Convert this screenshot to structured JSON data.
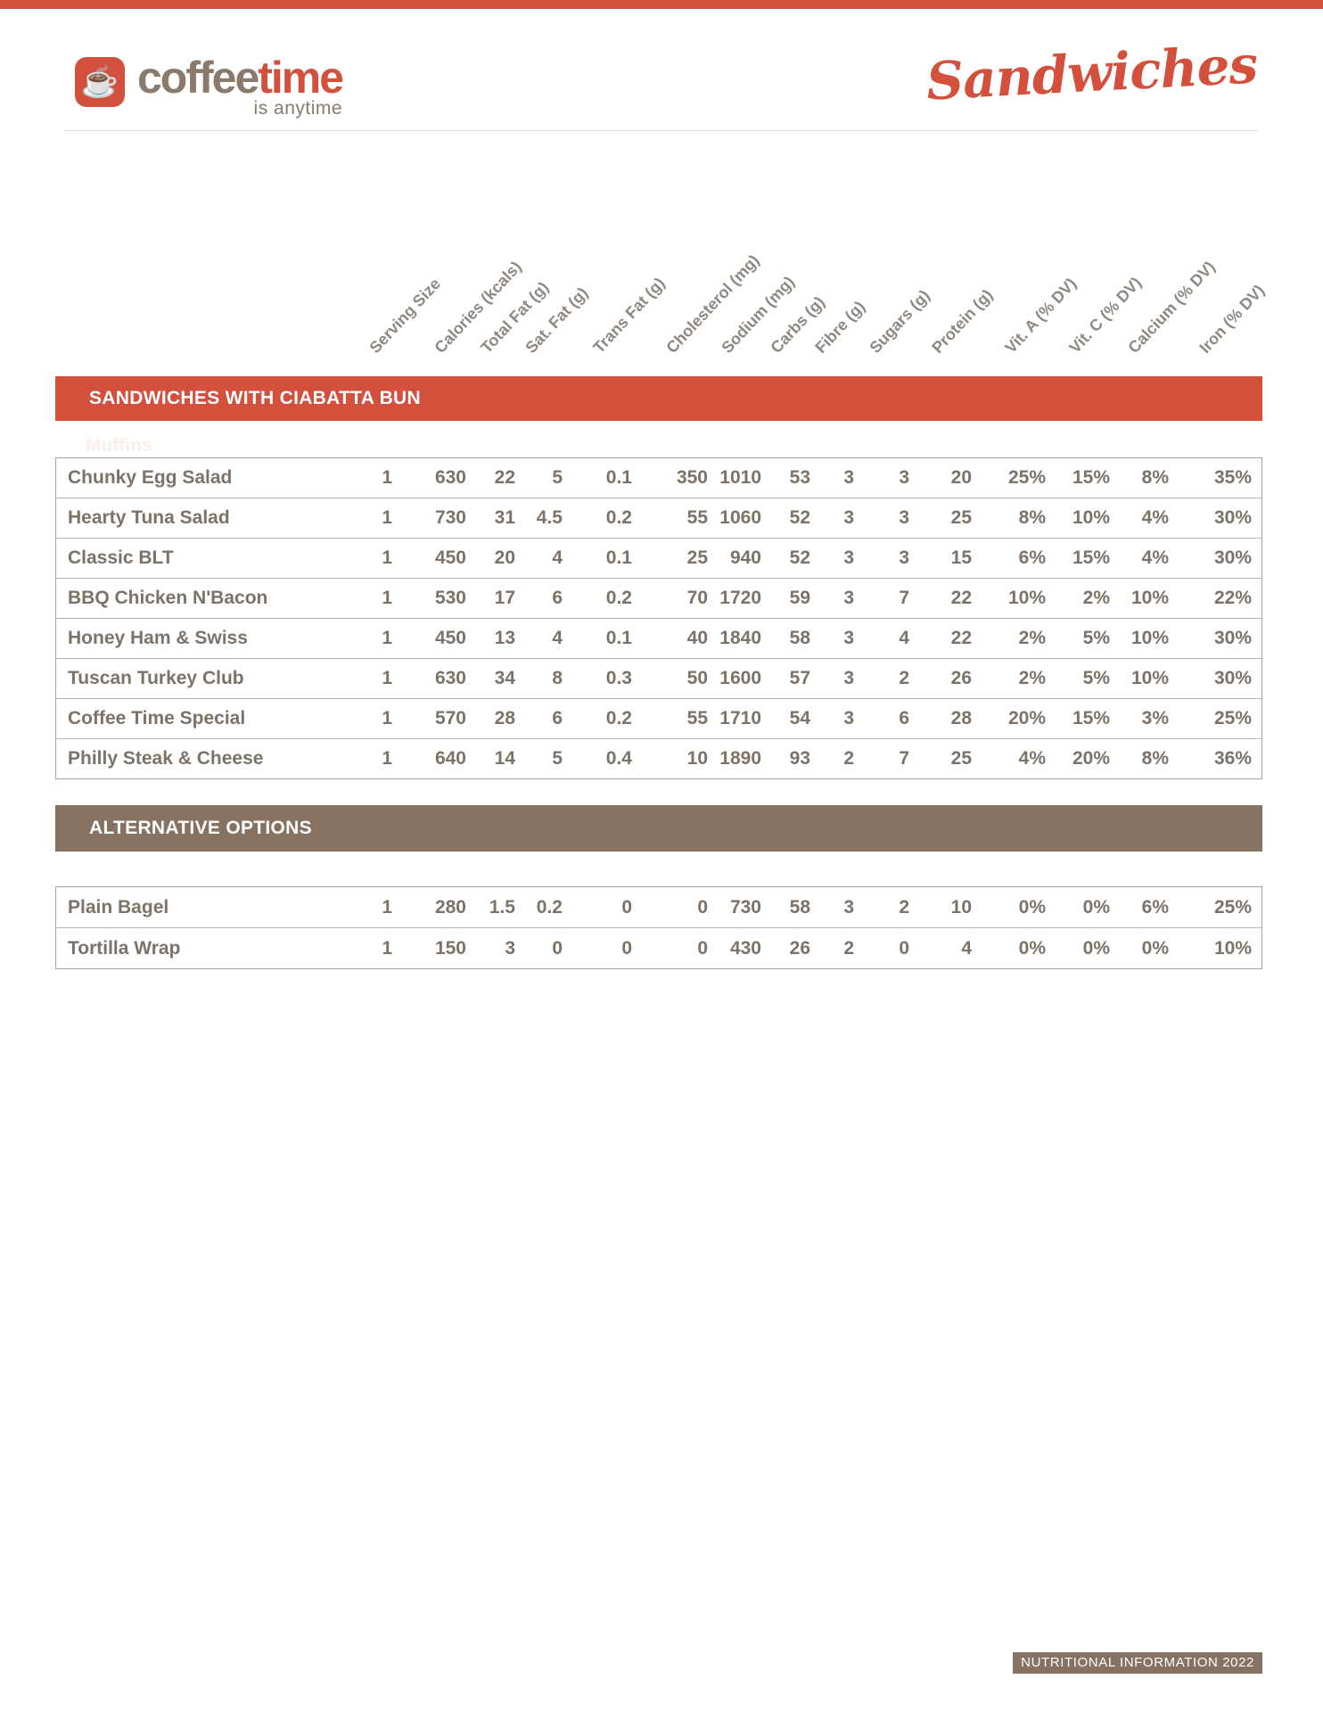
{
  "header": {
    "brand_first": "coffee",
    "brand_second": "time",
    "tagline": "is anytime",
    "script_title": "Sandwiches",
    "coffee_cup_icon": "☕"
  },
  "columns": [
    "Serving Size",
    "Calories (kcals)",
    "Total Fat (g)",
    "Sat. Fat (g)",
    "Trans Fat (g)",
    "Cholesterol (mg)",
    "Sodium (mg)",
    "Carbs (g)",
    "Fibre (g)",
    "Sugars (g)",
    "Protein (g)",
    "Vit. A (% DV)",
    "Vit. C (% DV)",
    "Calcium (% DV)",
    "Iron (% DV)"
  ],
  "sections": [
    {
      "title": "SANDWICHES WITH CIABATTA BUN",
      "ghost_label": "Muffins",
      "rows": [
        {
          "name": "Chunky Egg Salad",
          "values": [
            "1",
            "630",
            "22",
            "5",
            "0.1",
            "350",
            "1010",
            "53",
            "3",
            "3",
            "20",
            "25%",
            "15%",
            "8%",
            "35%"
          ]
        },
        {
          "name": "Hearty Tuna Salad",
          "values": [
            "1",
            "730",
            "31",
            "4.5",
            "0.2",
            "55",
            "1060",
            "52",
            "3",
            "3",
            "25",
            "8%",
            "10%",
            "4%",
            "30%"
          ]
        },
        {
          "name": "Classic BLT",
          "values": [
            "1",
            "450",
            "20",
            "4",
            "0.1",
            "25",
            "940",
            "52",
            "3",
            "3",
            "15",
            "6%",
            "15%",
            "4%",
            "30%"
          ]
        },
        {
          "name": "BBQ Chicken N'Bacon",
          "values": [
            "1",
            "530",
            "17",
            "6",
            "0.2",
            "70",
            "1720",
            "59",
            "3",
            "7",
            "22",
            "10%",
            "2%",
            "10%",
            "22%"
          ]
        },
        {
          "name": "Honey Ham & Swiss",
          "values": [
            "1",
            "450",
            "13",
            "4",
            "0.1",
            "40",
            "1840",
            "58",
            "3",
            "4",
            "22",
            "2%",
            "5%",
            "10%",
            "30%"
          ]
        },
        {
          "name": "Tuscan Turkey Club",
          "values": [
            "1",
            "630",
            "34",
            "8",
            "0.3",
            "50",
            "1600",
            "57",
            "3",
            "2",
            "26",
            "2%",
            "5%",
            "10%",
            "30%"
          ]
        },
        {
          "name": "Coffee Time Special",
          "values": [
            "1",
            "570",
            "28",
            "6",
            "0.2",
            "55",
            "1710",
            "54",
            "3",
            "6",
            "28",
            "20%",
            "15%",
            "3%",
            "25%"
          ]
        },
        {
          "name": "Philly Steak & Cheese",
          "values": [
            "1",
            "640",
            "14",
            "5",
            "0.4",
            "10",
            "1890",
            "93",
            "2",
            "7",
            "25",
            "4%",
            "20%",
            "8%",
            "36%"
          ]
        }
      ]
    },
    {
      "title": "ALTERNATIVE OPTIONS",
      "rows": [
        {
          "name": "Plain Bagel",
          "values": [
            "1",
            "280",
            "1.5",
            "0.2",
            "0",
            "0",
            "730",
            "58",
            "3",
            "2",
            "10",
            "0%",
            "0%",
            "6%",
            "25%"
          ]
        },
        {
          "name": "Tortilla Wrap",
          "values": [
            "1",
            "150",
            "3",
            "0",
            "0",
            "0",
            "430",
            "26",
            "2",
            "0",
            "4",
            "0%",
            "0%",
            "0%",
            "10%"
          ]
        }
      ]
    }
  ],
  "footer": {
    "badge": "NUTRITIONAL INFORMATION 2022"
  },
  "colors": {
    "accent_red": "#D2503C",
    "accent_brown": "#857262"
  }
}
